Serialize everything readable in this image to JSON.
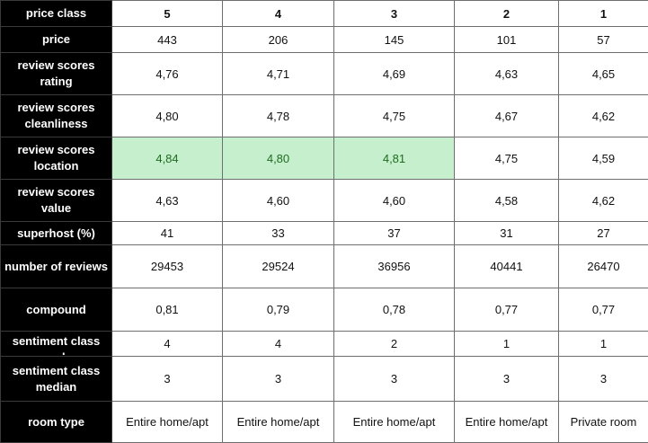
{
  "header_label": "price class",
  "columns": [
    "5",
    "4",
    "3",
    "2",
    "1"
  ],
  "rows": [
    {
      "label": "price",
      "values": [
        "443",
        "206",
        "145",
        "101",
        "57"
      ]
    },
    {
      "label": "review scores rating",
      "values": [
        "4,76",
        "4,71",
        "4,69",
        "4,63",
        "4,65"
      ]
    },
    {
      "label": "review scores cleanliness",
      "values": [
        "4,80",
        "4,78",
        "4,75",
        "4,67",
        "4,62"
      ]
    },
    {
      "label": "review scores location",
      "values": [
        "4,84",
        "4,80",
        "4,81",
        "4,75",
        "4,59"
      ],
      "highlight": [
        0,
        1,
        2
      ]
    },
    {
      "label": "review scores value",
      "values": [
        "4,63",
        "4,60",
        "4,60",
        "4,58",
        "4,62"
      ]
    },
    {
      "label": "superhost (%)",
      "values": [
        "41",
        "33",
        "37",
        "31",
        "27"
      ]
    },
    {
      "label": "number of reviews",
      "values": [
        "29453",
        "29524",
        "36956",
        "40441",
        "26470"
      ]
    },
    {
      "label": "compound",
      "values": [
        "0,81",
        "0,79",
        "0,78",
        "0,77",
        "0,77"
      ]
    },
    {
      "label": "sentiment class mode",
      "values": [
        "4",
        "4",
        "2",
        "1",
        "1"
      ]
    },
    {
      "label": "sentiment class median",
      "values": [
        "3",
        "3",
        "3",
        "3",
        "3"
      ]
    },
    {
      "label": "room type",
      "values": [
        "Entire home/apt",
        "Entire home/apt",
        "Entire home/apt",
        "Entire home/apt",
        "Private room"
      ]
    }
  ],
  "colors": {
    "row_header_bg": "#000000",
    "row_header_text": "#ffffff",
    "highlight_bg": "#c6efce",
    "highlight_text": "#1f6b1f",
    "border": "#6f6f6f"
  }
}
